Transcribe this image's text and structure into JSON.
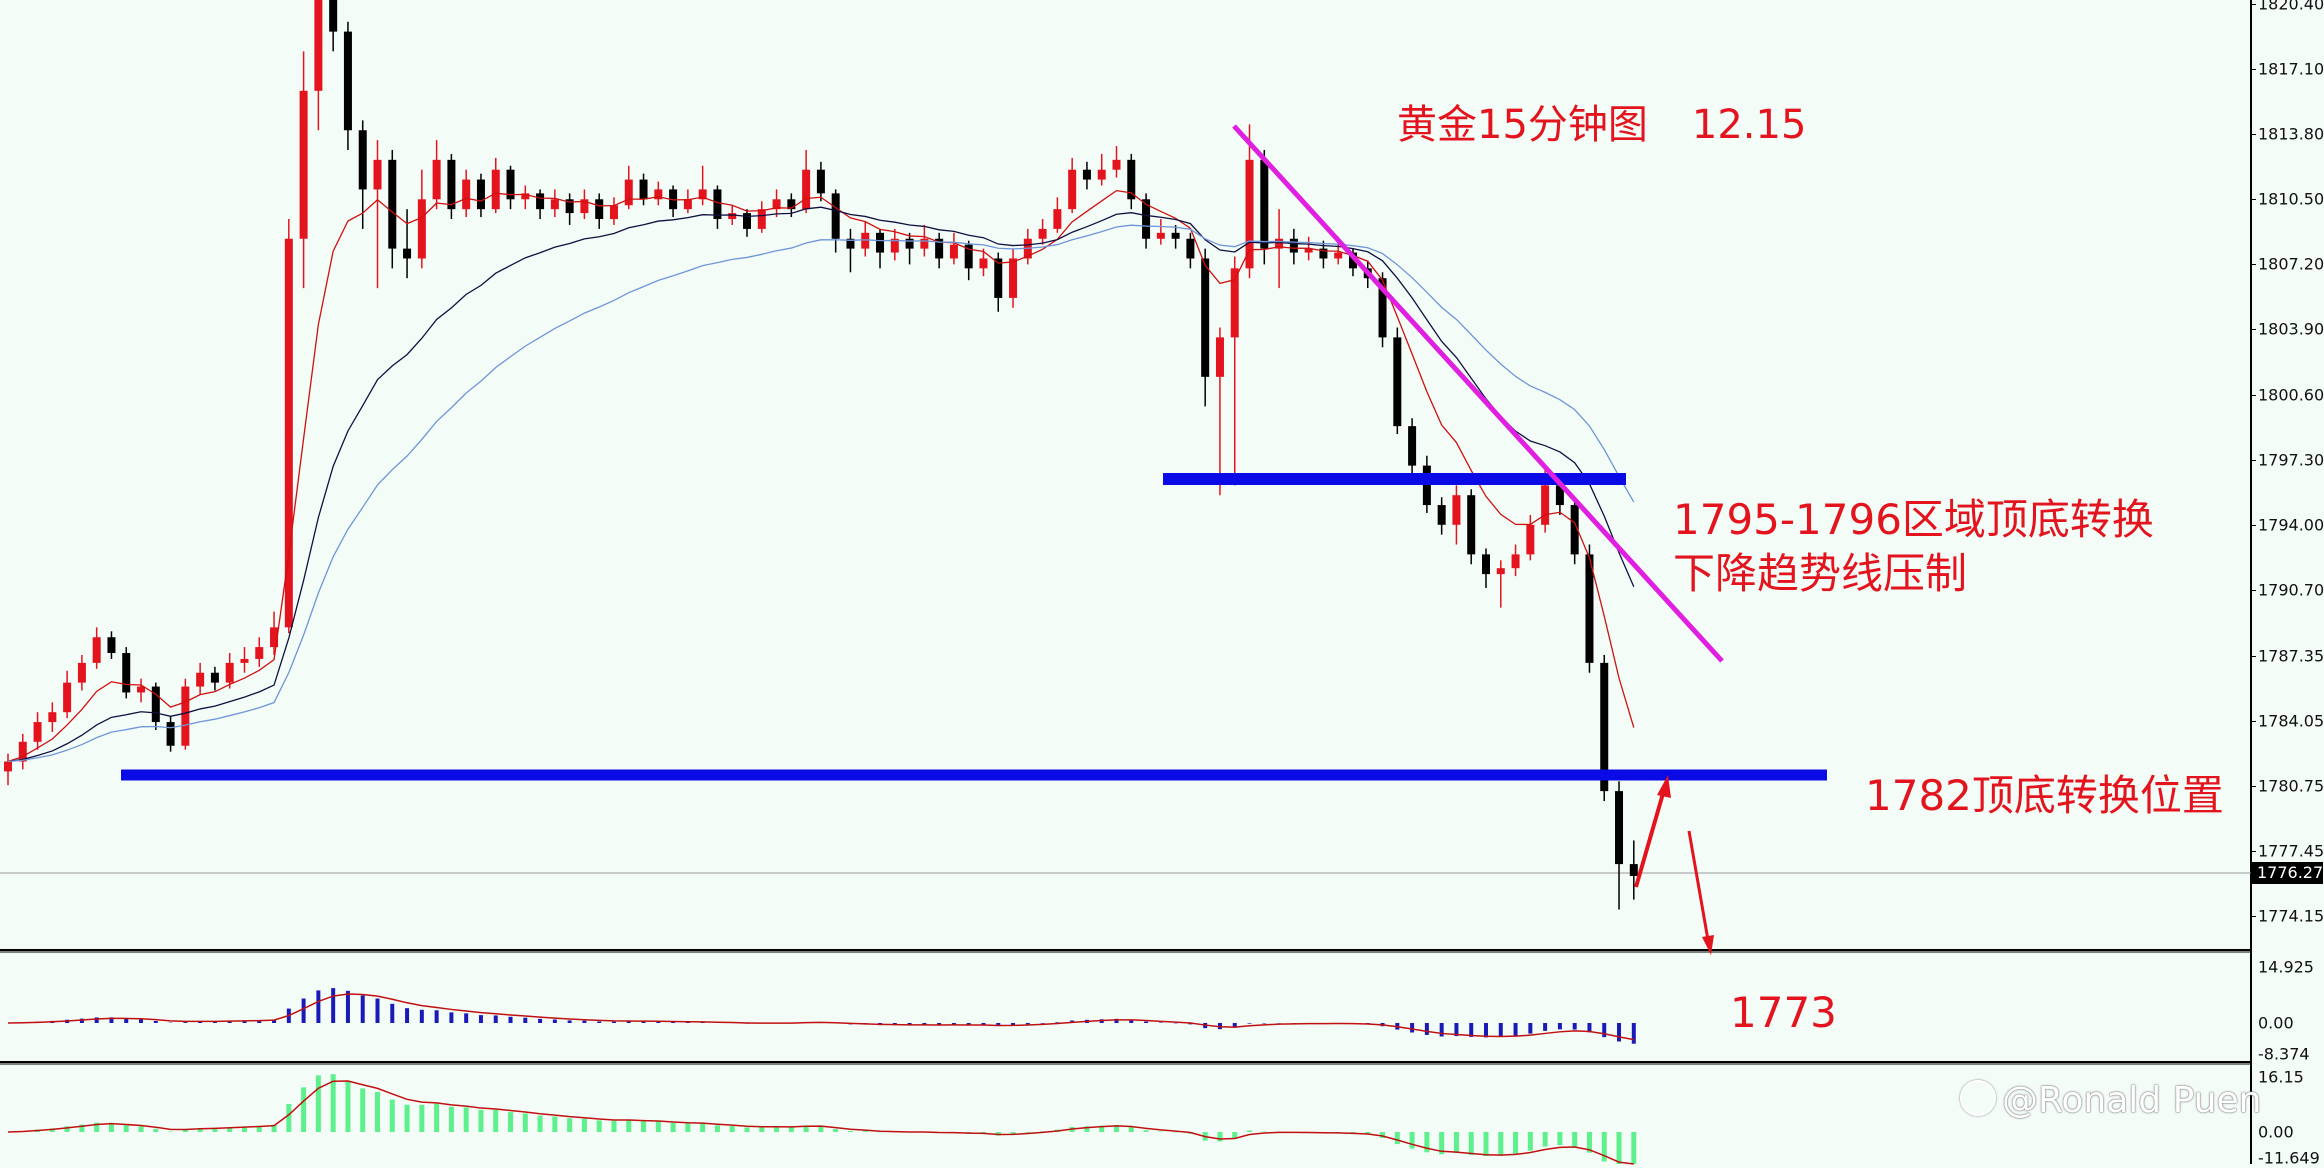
{
  "chart_data": {
    "type": "candlestick",
    "title": "黄金15分钟图",
    "date": "12.15",
    "colors": {
      "up": "#e3141e",
      "down": "#000000",
      "background": "#f4fcf8",
      "support": "#0a0ae6",
      "trendline": "#e020e0",
      "ma_fast": "#d01010",
      "ma_mid": "#101040",
      "ma_slow": "#6f95d8",
      "macd_hist": "#1a1ab8",
      "osc_hist": "#5ef08c",
      "signal": "#c01010"
    },
    "price_axis": {
      "ticks": [
        "1820.40",
        "1817.10",
        "1813.80",
        "1810.50",
        "1807.20",
        "1803.90",
        "1800.60",
        "1797.30",
        "1794.00",
        "1790.70",
        "1787.35",
        "1784.05",
        "1780.75",
        "1777.45",
        "1774.15"
      ],
      "current_price": "1776.27"
    },
    "ylim": [
      1772.4,
      1820.6
    ],
    "ohlc": [
      [
        1781.5,
        1782.4,
        1780.8,
        1782.0
      ],
      [
        1782.0,
        1783.4,
        1781.6,
        1783.0
      ],
      [
        1783.0,
        1784.5,
        1782.6,
        1784.0
      ],
      [
        1784.0,
        1785.0,
        1783.5,
        1784.5
      ],
      [
        1784.5,
        1786.6,
        1784.2,
        1786.0
      ],
      [
        1786.0,
        1787.4,
        1785.6,
        1787.0
      ],
      [
        1787.0,
        1788.8,
        1786.7,
        1788.3
      ],
      [
        1788.3,
        1788.6,
        1787.2,
        1787.5
      ],
      [
        1787.5,
        1787.8,
        1785.2,
        1785.5
      ],
      [
        1785.5,
        1786.2,
        1785.0,
        1785.8
      ],
      [
        1785.8,
        1786.0,
        1783.6,
        1784.0
      ],
      [
        1784.0,
        1784.3,
        1782.5,
        1782.8
      ],
      [
        1782.8,
        1786.2,
        1782.6,
        1785.8
      ],
      [
        1785.8,
        1787.0,
        1785.4,
        1786.5
      ],
      [
        1786.5,
        1786.8,
        1785.6,
        1786.0
      ],
      [
        1786.0,
        1787.5,
        1785.7,
        1787.0
      ],
      [
        1787.0,
        1787.8,
        1786.5,
        1787.2
      ],
      [
        1787.2,
        1788.3,
        1786.8,
        1787.8
      ],
      [
        1787.8,
        1789.6,
        1787.4,
        1788.8
      ],
      [
        1788.8,
        1809.5,
        1788.5,
        1808.5
      ],
      [
        1808.5,
        1818.0,
        1806.0,
        1816.0
      ],
      [
        1816.0,
        1822.0,
        1814.0,
        1821.5
      ],
      [
        1821.5,
        1822.0,
        1818.0,
        1819.0
      ],
      [
        1819.0,
        1819.5,
        1813.0,
        1814.0
      ],
      [
        1814.0,
        1814.5,
        1809.0,
        1811.0
      ],
      [
        1811.0,
        1813.5,
        1806.0,
        1812.5
      ],
      [
        1812.5,
        1813.0,
        1807.0,
        1808.0
      ],
      [
        1808.0,
        1810.0,
        1806.5,
        1807.5
      ],
      [
        1807.5,
        1812.0,
        1807.0,
        1810.5
      ],
      [
        1810.5,
        1813.5,
        1810.0,
        1812.5
      ],
      [
        1812.5,
        1812.8,
        1809.5,
        1810.0
      ],
      [
        1810.0,
        1812.0,
        1809.6,
        1811.5
      ],
      [
        1811.5,
        1811.8,
        1809.6,
        1810.0
      ],
      [
        1810.0,
        1812.6,
        1809.8,
        1812.0
      ],
      [
        1812.0,
        1812.2,
        1810.0,
        1810.5
      ],
      [
        1810.5,
        1811.2,
        1810.0,
        1810.8
      ],
      [
        1810.8,
        1811.0,
        1809.5,
        1810.0
      ],
      [
        1810.0,
        1811.0,
        1809.6,
        1810.5
      ],
      [
        1810.5,
        1810.8,
        1809.2,
        1809.8
      ],
      [
        1809.8,
        1811.0,
        1809.5,
        1810.5
      ],
      [
        1810.5,
        1810.8,
        1809.0,
        1809.5
      ],
      [
        1809.5,
        1810.6,
        1809.2,
        1810.2
      ],
      [
        1810.2,
        1812.2,
        1810.0,
        1811.5
      ],
      [
        1811.5,
        1811.8,
        1810.2,
        1810.5
      ],
      [
        1810.5,
        1811.4,
        1810.2,
        1811.0
      ],
      [
        1811.0,
        1811.2,
        1809.6,
        1810.0
      ],
      [
        1810.0,
        1811.0,
        1809.8,
        1810.5
      ],
      [
        1810.5,
        1812.2,
        1810.2,
        1811.0
      ],
      [
        1811.0,
        1811.2,
        1809.0,
        1809.5
      ],
      [
        1809.5,
        1810.2,
        1809.2,
        1809.8
      ],
      [
        1809.8,
        1810.0,
        1808.6,
        1809.0
      ],
      [
        1809.0,
        1810.4,
        1808.8,
        1810.0
      ],
      [
        1810.0,
        1811.0,
        1809.6,
        1810.5
      ],
      [
        1810.5,
        1810.8,
        1809.6,
        1810.0
      ],
      [
        1810.0,
        1813.0,
        1809.8,
        1812.0
      ],
      [
        1812.0,
        1812.4,
        1810.4,
        1810.8
      ],
      [
        1810.8,
        1811.0,
        1807.8,
        1808.5
      ],
      [
        1808.5,
        1809.0,
        1806.8,
        1808.0
      ],
      [
        1808.0,
        1809.4,
        1807.6,
        1808.8
      ],
      [
        1808.8,
        1809.0,
        1807.0,
        1807.8
      ],
      [
        1807.8,
        1809.0,
        1807.4,
        1808.5
      ],
      [
        1808.5,
        1808.8,
        1807.2,
        1808.0
      ],
      [
        1808.0,
        1809.2,
        1807.6,
        1808.5
      ],
      [
        1808.5,
        1808.8,
        1807.0,
        1807.5
      ],
      [
        1807.5,
        1808.8,
        1807.2,
        1808.2
      ],
      [
        1808.2,
        1808.4,
        1806.4,
        1807.0
      ],
      [
        1807.0,
        1808.0,
        1806.6,
        1807.5
      ],
      [
        1807.5,
        1807.8,
        1804.8,
        1805.5
      ],
      [
        1805.5,
        1808.0,
        1805.0,
        1807.5
      ],
      [
        1807.5,
        1809.0,
        1807.2,
        1808.5
      ],
      [
        1808.5,
        1809.5,
        1808.2,
        1809.0
      ],
      [
        1809.0,
        1810.6,
        1808.8,
        1810.0
      ],
      [
        1810.0,
        1812.6,
        1809.8,
        1812.0
      ],
      [
        1812.0,
        1812.4,
        1811.0,
        1811.5
      ],
      [
        1811.5,
        1812.8,
        1811.2,
        1812.0
      ],
      [
        1812.0,
        1813.2,
        1811.6,
        1812.5
      ],
      [
        1812.5,
        1812.8,
        1810.0,
        1810.5
      ],
      [
        1810.5,
        1810.8,
        1808.0,
        1808.5
      ],
      [
        1808.5,
        1809.5,
        1808.2,
        1808.8
      ],
      [
        1808.8,
        1809.2,
        1808.0,
        1808.5
      ],
      [
        1808.5,
        1808.8,
        1807.0,
        1807.5
      ],
      [
        1807.5,
        1808.0,
        1800.0,
        1801.5
      ],
      [
        1801.5,
        1804.0,
        1795.5,
        1803.5
      ],
      [
        1803.5,
        1807.6,
        1796.0,
        1807.0
      ],
      [
        1807.0,
        1814.3,
        1806.5,
        1812.5
      ],
      [
        1812.5,
        1813.0,
        1807.2,
        1808.0
      ],
      [
        1808.0,
        1810.0,
        1806.0,
        1808.5
      ],
      [
        1808.5,
        1809.0,
        1807.2,
        1807.8
      ],
      [
        1807.8,
        1808.6,
        1807.4,
        1808.0
      ],
      [
        1808.0,
        1808.4,
        1807.0,
        1807.5
      ],
      [
        1807.5,
        1808.6,
        1807.2,
        1807.8
      ],
      [
        1807.8,
        1808.0,
        1806.6,
        1807.0
      ],
      [
        1807.0,
        1807.4,
        1806.0,
        1806.5
      ],
      [
        1806.5,
        1806.8,
        1803.0,
        1803.5
      ],
      [
        1803.5,
        1804.0,
        1798.6,
        1799.0
      ],
      [
        1799.0,
        1799.4,
        1796.6,
        1797.0
      ],
      [
        1797.0,
        1797.5,
        1794.6,
        1795.0
      ],
      [
        1795.0,
        1795.4,
        1793.5,
        1794.0
      ],
      [
        1794.0,
        1796.0,
        1793.0,
        1795.5
      ],
      [
        1795.5,
        1795.8,
        1792.0,
        1792.5
      ],
      [
        1792.5,
        1792.8,
        1790.8,
        1791.5
      ],
      [
        1791.5,
        1792.2,
        1789.8,
        1791.8
      ],
      [
        1791.8,
        1793.0,
        1791.4,
        1792.5
      ],
      [
        1792.5,
        1794.5,
        1792.2,
        1794.0
      ],
      [
        1794.0,
        1796.8,
        1793.6,
        1796.0
      ],
      [
        1796.0,
        1796.4,
        1794.5,
        1795.0
      ],
      [
        1795.0,
        1795.4,
        1792.0,
        1792.5
      ],
      [
        1792.5,
        1793.0,
        1786.5,
        1787.0
      ],
      [
        1787.0,
        1787.4,
        1780.0,
        1780.5
      ],
      [
        1780.5,
        1781.0,
        1774.5,
        1776.8
      ],
      [
        1776.8,
        1778.0,
        1775.0,
        1776.2
      ]
    ],
    "indicator1_axis": {
      "ticks": [
        "14.925",
        "0.00",
        "-8.374"
      ],
      "range": [
        -8.374,
        14.925
      ]
    },
    "indicator2_axis": {
      "ticks": [
        "16.15",
        "0.00",
        "-11.649"
      ],
      "range": [
        -11.649,
        16.15
      ]
    }
  },
  "annotations": {
    "zone_label": "1795-1796区域顶底转换",
    "trend_label": "下降趋势线压制",
    "level_label": "1782顶底转换位置",
    "target_label": "1773"
  },
  "watermark": "@Ronald Puen"
}
